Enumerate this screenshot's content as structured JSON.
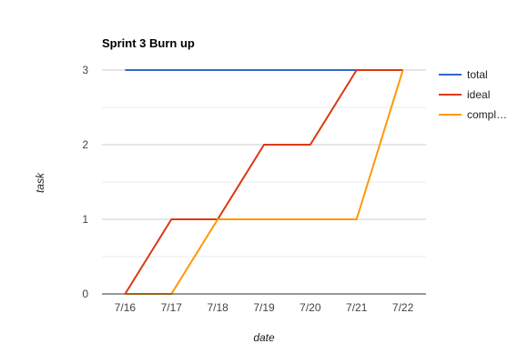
{
  "chart_data": {
    "type": "line",
    "title": "Sprint 3 Burn up",
    "xlabel": "date",
    "ylabel": "task",
    "categories": [
      "7/16",
      "7/17",
      "7/18",
      "7/19",
      "7/20",
      "7/21",
      "7/22"
    ],
    "yticks": [
      "0",
      "1",
      "2",
      "3"
    ],
    "ylim": [
      0,
      3
    ],
    "grid": true,
    "legend_position": "right",
    "series": [
      {
        "name": "total",
        "color": "#3366cc",
        "values": [
          3,
          3,
          3,
          3,
          3,
          3,
          3
        ]
      },
      {
        "name": "ideal",
        "color": "#dc3912",
        "values": [
          0,
          1,
          1,
          2,
          2,
          3,
          3
        ]
      },
      {
        "name": "compl…",
        "color": "#ff9900",
        "values": [
          0,
          0,
          1,
          1,
          1,
          1,
          3
        ]
      }
    ]
  }
}
